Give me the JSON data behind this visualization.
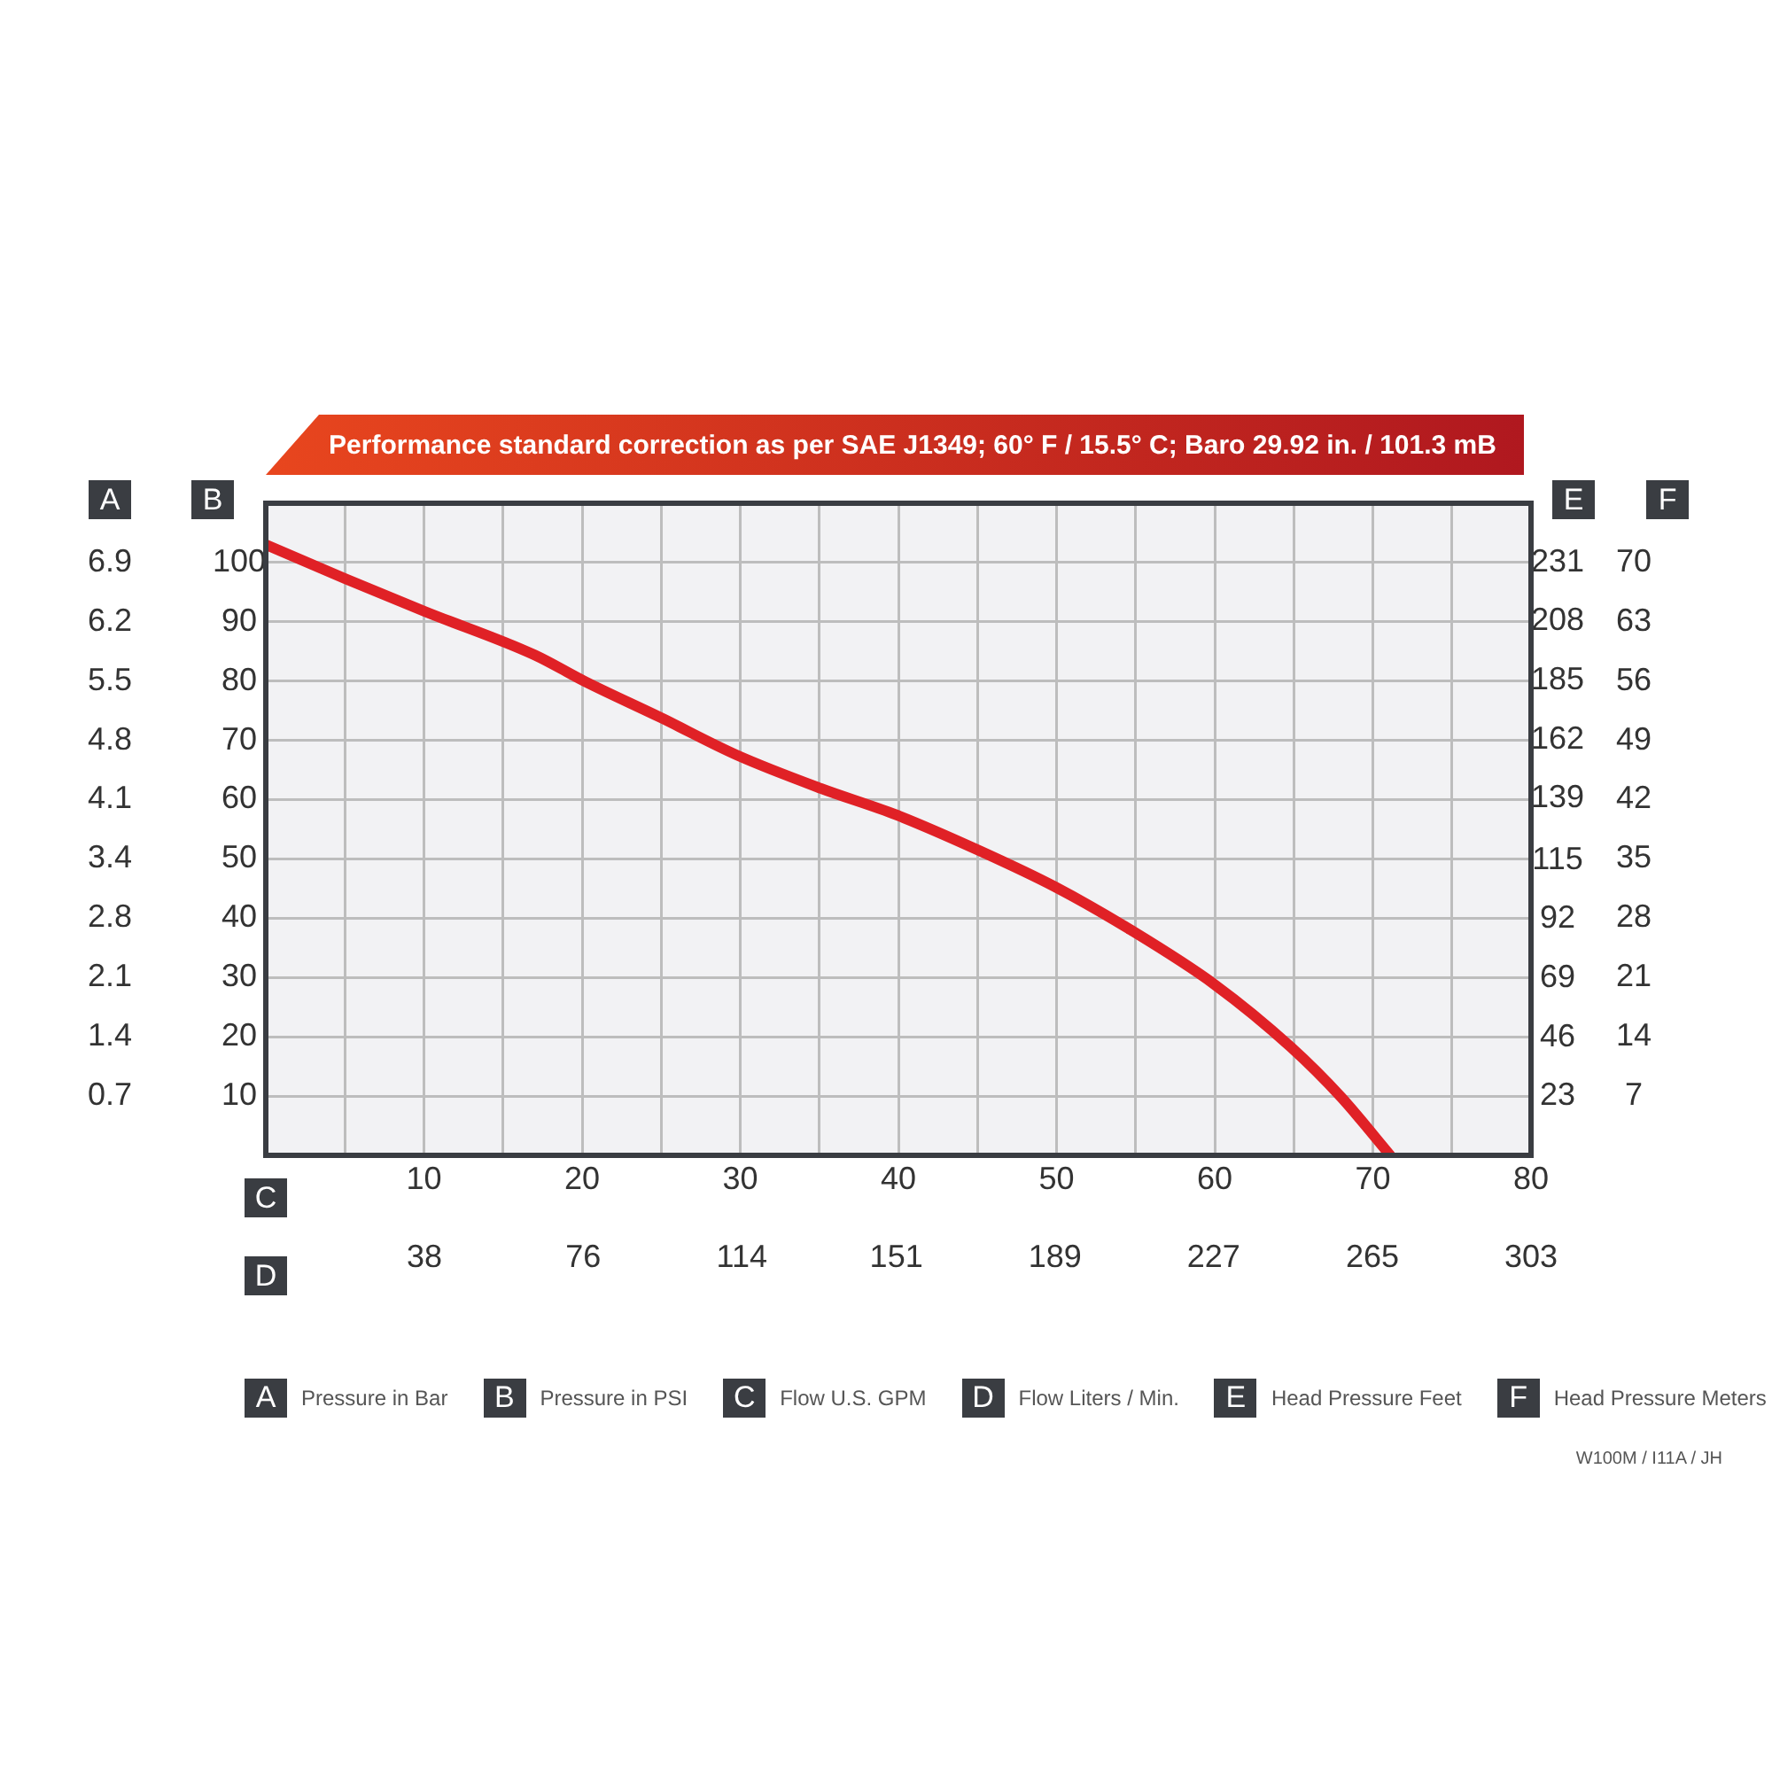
{
  "chart_data": {
    "type": "line",
    "title": "Performance standard correction as per SAE J1349;  60° F / 15.5° C;  Baro 29.92 in. / 101.3 mB",
    "xlabel": "C",
    "x2label": "D",
    "ylabel": "B",
    "y2label": "E",
    "y3label": "F",
    "annotations": [
      "Pressure in Bar",
      "Pressure in PSI",
      "Flow U.S. GPM",
      "Flow Liters / Min.",
      "Head Pressure Feet",
      "Head Pressure Meters",
      "W100M / I11A / JH",
      "A",
      "6.9",
      "6.2",
      "5.5",
      "4.8",
      "4.1",
      "3.4",
      "2.8",
      "2.1",
      "1.4",
      "0.7"
    ],
    "x": [
      0,
      5.0,
      10.1,
      17.0,
      20.2,
      25.0,
      29.8,
      35.1,
      39.9,
      45.2,
      49.9,
      54.7,
      60.0,
      64.8,
      68.0,
      71.1
    ],
    "series": [
      {
        "color": "#e02126",
        "values": [
          103,
          97.3,
          91.7,
          84.4,
          79.9,
          73.8,
          67.5,
          61.9,
          57.4,
          51.3,
          45.3,
          38.0,
          28.8,
          18.3,
          9.8,
          0
        ]
      }
    ],
    "xlim": [
      0,
      80
    ],
    "xticks": [
      {
        "value": 5,
        "label": null
      },
      10,
      {
        "value": 15,
        "label": null
      },
      20,
      {
        "value": 25,
        "label": null
      },
      30,
      {
        "value": 35,
        "label": null
      },
      40,
      {
        "value": 45,
        "label": null
      },
      50,
      {
        "value": 55,
        "label": null
      },
      60,
      {
        "value": 65,
        "label": null
      },
      70,
      {
        "value": 75,
        "label": null
      },
      80
    ],
    "x2lim": [
      0,
      303
    ],
    "x2ticks": [
      38,
      76,
      114,
      151,
      189,
      227,
      265,
      303
    ],
    "ylim": [
      0,
      110
    ],
    "yticks": [
      10,
      20,
      30,
      40,
      50,
      60,
      70,
      80,
      90,
      100
    ],
    "y2lim": [
      0,
      254
    ],
    "y2ticks": [
      23,
      46,
      69,
      92,
      115,
      139,
      162,
      185,
      208,
      231
    ],
    "y3lim": [
      0,
      77
    ],
    "y3ticks": [
      7,
      14,
      21,
      28,
      35,
      42,
      49,
      56,
      63,
      70
    ],
    "grid": true,
    "marker": "none",
    "line_style": "solid"
  }
}
